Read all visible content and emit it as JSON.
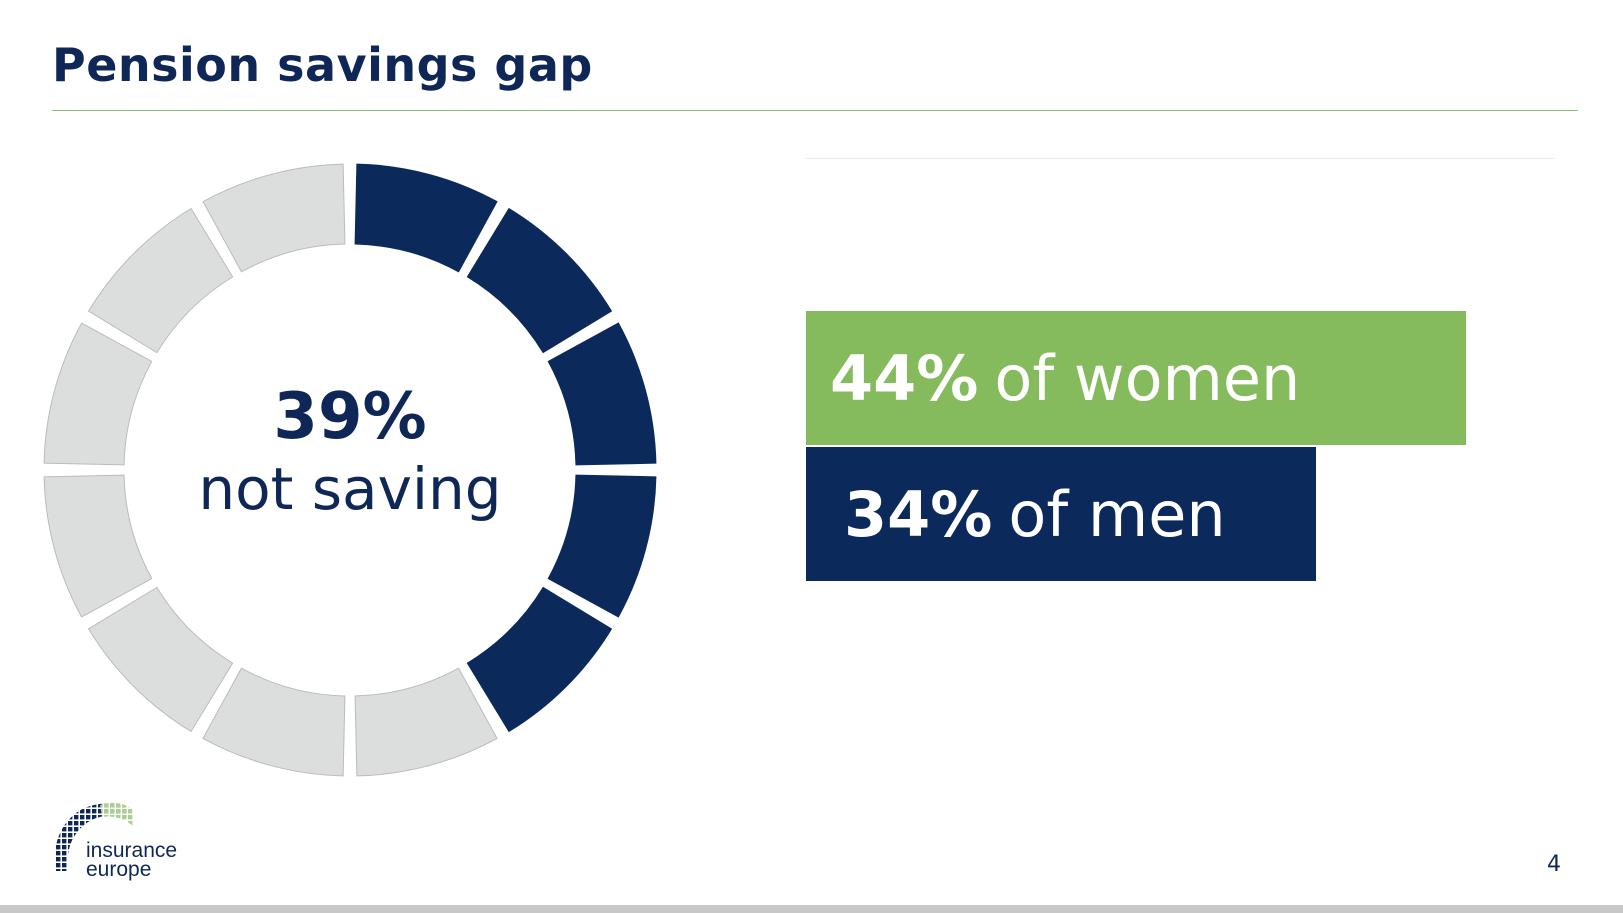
{
  "slide": {
    "title": "Pension savings gap",
    "page_number": "4"
  },
  "donut": {
    "value": "39%",
    "label": "not saving"
  },
  "bars": {
    "women": {
      "value": "44%",
      "text": "of women"
    },
    "men": {
      "value": "34%",
      "text": "of men"
    }
  },
  "logo": {
    "line1": "insurance",
    "line2": "europe"
  },
  "chart_data": {
    "type": "bar",
    "categories": [
      "women",
      "men"
    ],
    "values": [
      44,
      34
    ]
  },
  "colors": {
    "navy": "#0b2a5b",
    "green": "#85bb5c",
    "grey_segment": "#dcdedd"
  }
}
